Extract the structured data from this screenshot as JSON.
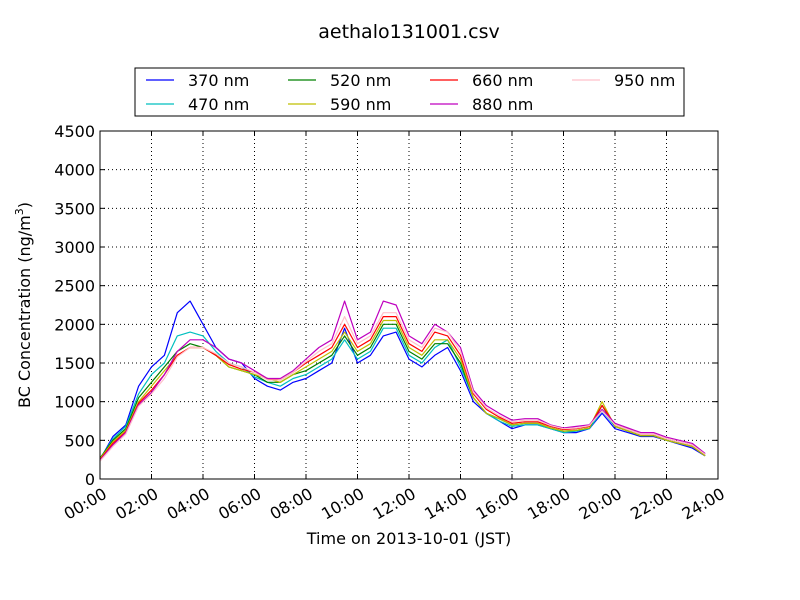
{
  "chart_data": {
    "type": "line",
    "title": "aethalo131001.csv",
    "xlabel": "Time on 2013-10-01 (JST)",
    "ylabel": "BC Concentration (ng/m",
    "ylabel_sup": "3",
    "ylabel_close": ")",
    "xlim": [
      "00:00",
      "24:00"
    ],
    "ylim": [
      0,
      4500
    ],
    "x_ticks": [
      "00:00",
      "02:00",
      "04:00",
      "06:00",
      "08:00",
      "10:00",
      "12:00",
      "14:00",
      "16:00",
      "18:00",
      "20:00",
      "22:00",
      "24:00"
    ],
    "y_ticks": [
      0,
      500,
      1000,
      1500,
      2000,
      2500,
      3000,
      3500,
      4000,
      4500
    ],
    "grid": true,
    "legend_position": "top",
    "x": [
      "00:00",
      "00:30",
      "01:00",
      "01:30",
      "02:00",
      "02:30",
      "03:00",
      "03:30",
      "04:00",
      "04:30",
      "05:00",
      "05:30",
      "06:00",
      "06:30",
      "07:00",
      "07:30",
      "08:00",
      "08:30",
      "09:00",
      "09:30",
      "10:00",
      "10:30",
      "11:00",
      "11:30",
      "12:00",
      "12:30",
      "13:00",
      "13:30",
      "14:00",
      "14:30",
      "15:00",
      "15:30",
      "16:00",
      "16:30",
      "17:00",
      "17:30",
      "18:00",
      "18:30",
      "19:00",
      "19:30",
      "20:00",
      "20:30",
      "21:00",
      "21:30",
      "22:00",
      "22:30",
      "23:00",
      "23:30"
    ],
    "series": [
      {
        "name": "370 nm",
        "color": "#0000ff",
        "values": [
          250,
          550,
          700,
          1200,
          1450,
          1600,
          2150,
          2300,
          2000,
          1700,
          1550,
          1500,
          1300,
          1200,
          1150,
          1250,
          1300,
          1400,
          1500,
          1950,
          1500,
          1600,
          1850,
          1900,
          1550,
          1450,
          1600,
          1700,
          1400,
          1000,
          850,
          750,
          650,
          700,
          700,
          650,
          600,
          600,
          650,
          850,
          650,
          600,
          550,
          550,
          500,
          450,
          400,
          300
        ]
      },
      {
        "name": "470 nm",
        "color": "#00bfbf",
        "values": [
          260,
          520,
          680,
          1100,
          1350,
          1500,
          1850,
          1900,
          1850,
          1650,
          1500,
          1450,
          1320,
          1250,
          1200,
          1300,
          1350,
          1450,
          1550,
          1800,
          1550,
          1650,
          1950,
          1950,
          1600,
          1500,
          1700,
          1800,
          1450,
          1050,
          850,
          750,
          680,
          700,
          700,
          650,
          600,
          620,
          650,
          880,
          680,
          620,
          560,
          560,
          500,
          460,
          420,
          320
        ]
      },
      {
        "name": "520 nm",
        "color": "#008000",
        "values": [
          270,
          500,
          650,
          1050,
          1250,
          1450,
          1650,
          1750,
          1700,
          1600,
          1450,
          1400,
          1350,
          1250,
          1250,
          1350,
          1400,
          1500,
          1600,
          1850,
          1600,
          1700,
          2000,
          2000,
          1650,
          1550,
          1750,
          1750,
          1500,
          1050,
          850,
          780,
          700,
          720,
          720,
          660,
          620,
          630,
          660,
          950,
          680,
          620,
          560,
          560,
          500,
          460,
          420,
          300
        ]
      },
      {
        "name": "590 nm",
        "color": "#bfbf00",
        "values": [
          260,
          480,
          630,
          1000,
          1200,
          1400,
          1600,
          1700,
          1700,
          1600,
          1450,
          1400,
          1350,
          1300,
          1250,
          1350,
          1450,
          1550,
          1650,
          1900,
          1650,
          1750,
          2050,
          2050,
          1700,
          1600,
          1800,
          1800,
          1550,
          1050,
          850,
          780,
          700,
          720,
          720,
          660,
          620,
          630,
          660,
          1000,
          680,
          620,
          560,
          560,
          500,
          460,
          420,
          300
        ]
      },
      {
        "name": "660 nm",
        "color": "#ff0000",
        "values": [
          250,
          460,
          610,
          980,
          1150,
          1350,
          1600,
          1700,
          1700,
          1600,
          1480,
          1420,
          1380,
          1300,
          1280,
          1380,
          1500,
          1600,
          1700,
          2000,
          1700,
          1800,
          2100,
          2100,
          1750,
          1650,
          1900,
          1850,
          1600,
          1100,
          900,
          800,
          720,
          740,
          740,
          680,
          640,
          650,
          680,
          950,
          700,
          640,
          580,
          580,
          520,
          480,
          440,
          320
        ]
      },
      {
        "name": "880 nm",
        "color": "#bf00bf",
        "values": [
          240,
          440,
          600,
          960,
          1120,
          1350,
          1650,
          1800,
          1800,
          1700,
          1550,
          1500,
          1400,
          1300,
          1300,
          1400,
          1550,
          1700,
          1800,
          2300,
          1800,
          1900,
          2300,
          2250,
          1850,
          1750,
          2000,
          1900,
          1700,
          1150,
          950,
          850,
          760,
          780,
          780,
          700,
          660,
          680,
          700,
          900,
          720,
          660,
          600,
          600,
          540,
          500,
          460,
          330
        ]
      },
      {
        "name": "950 nm",
        "color": "#ffc0cb",
        "values": [
          230,
          420,
          580,
          940,
          1100,
          1300,
          1580,
          1700,
          1700,
          1620,
          1500,
          1450,
          1380,
          1280,
          1280,
          1380,
          1520,
          1650,
          1750,
          2100,
          1750,
          1850,
          2150,
          2150,
          1800,
          1700,
          1950,
          1900,
          1650,
          1120,
          920,
          820,
          740,
          760,
          760,
          690,
          650,
          660,
          690,
          880,
          700,
          640,
          580,
          580,
          520,
          480,
          440,
          320
        ]
      }
    ]
  }
}
